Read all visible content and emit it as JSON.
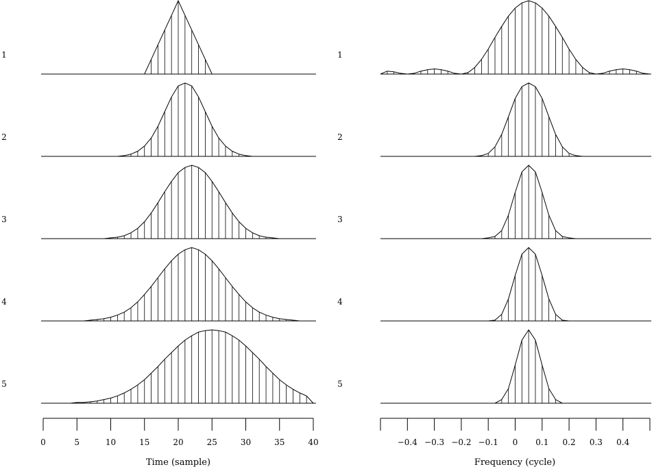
{
  "chart_data": [
    {
      "type": "line",
      "panel": "time",
      "xlabel": "Time (sample)",
      "xlim": [
        0,
        40
      ],
      "x_ticks": [
        "0",
        "5",
        "10",
        "15",
        "20",
        "25",
        "30",
        "35",
        "40"
      ],
      "x_tick_values": [
        0,
        5,
        10,
        15,
        20,
        25,
        30,
        35,
        40
      ],
      "trace_labels": [
        "1",
        "2",
        "3",
        "4",
        5
      ],
      "sample_start": 0,
      "sample_step": 1,
      "series": [
        {
          "name": "1",
          "values": [
            0,
            0,
            0,
            0,
            0,
            0,
            0,
            0,
            0,
            0,
            0,
            0,
            0,
            0,
            0,
            0,
            0.2,
            0.4,
            0.6,
            0.8,
            1.0,
            0.8,
            0.6,
            0.4,
            0.2,
            0,
            0,
            0,
            0,
            0,
            0,
            0,
            0,
            0,
            0,
            0,
            0,
            0,
            0,
            0,
            0
          ]
        },
        {
          "name": "2",
          "values": [
            0,
            0,
            0,
            0,
            0,
            0,
            0,
            0,
            0,
            0,
            0,
            0,
            0.01,
            0.03,
            0.07,
            0.14,
            0.25,
            0.41,
            0.61,
            0.81,
            0.96,
            1.0,
            0.96,
            0.81,
            0.61,
            0.41,
            0.25,
            0.14,
            0.07,
            0.03,
            0.01,
            0,
            0,
            0,
            0,
            0,
            0,
            0,
            0,
            0,
            0
          ]
        },
        {
          "name": "3",
          "values": [
            0,
            0,
            0,
            0,
            0,
            0,
            0,
            0,
            0,
            0,
            0.01,
            0.02,
            0.04,
            0.08,
            0.14,
            0.23,
            0.35,
            0.49,
            0.64,
            0.78,
            0.9,
            0.97,
            1.0,
            0.97,
            0.9,
            0.78,
            0.64,
            0.49,
            0.35,
            0.23,
            0.14,
            0.08,
            0.04,
            0.02,
            0.01,
            0,
            0,
            0,
            0,
            0,
            0
          ]
        },
        {
          "name": "4",
          "values": [
            0,
            0,
            0,
            0,
            0,
            0,
            0,
            0.01,
            0.02,
            0.03,
            0.05,
            0.08,
            0.12,
            0.18,
            0.26,
            0.36,
            0.47,
            0.59,
            0.71,
            0.82,
            0.91,
            0.97,
            1.0,
            0.97,
            0.91,
            0.82,
            0.71,
            0.59,
            0.47,
            0.36,
            0.26,
            0.18,
            0.12,
            0.08,
            0.05,
            0.03,
            0.02,
            0.01,
            0,
            0,
            0
          ]
        },
        {
          "name": "5",
          "values": [
            0,
            0,
            0,
            0,
            0,
            0.01,
            0.01,
            0.02,
            0.03,
            0.05,
            0.07,
            0.1,
            0.14,
            0.19,
            0.25,
            0.32,
            0.41,
            0.5,
            0.6,
            0.69,
            0.78,
            0.86,
            0.92,
            0.97,
            0.99,
            1.0,
            0.99,
            0.97,
            0.92,
            0.86,
            0.78,
            0.69,
            0.6,
            0.5,
            0.41,
            0.32,
            0.25,
            0.19,
            0.14,
            0.1,
            0
          ]
        }
      ]
    },
    {
      "type": "line",
      "panel": "frequency",
      "xlabel": "Frequency (cycle)",
      "xlim": [
        -0.5,
        0.5
      ],
      "x_ticks": [
        "−0.4",
        "−0.3",
        "−0.2",
        "−0.1",
        "0",
        "0.1",
        "0.2",
        "0.3",
        "0.4"
      ],
      "x_tick_values": [
        -0.4,
        -0.3,
        -0.2,
        -0.1,
        0,
        0.1,
        0.2,
        0.3,
        0.4
      ],
      "trace_labels": [
        "1",
        "2",
        "3",
        "4",
        "5"
      ],
      "sample_start": -0.5,
      "sample_step": 0.025,
      "series": [
        {
          "name": "1",
          "values": [
            0,
            0.04,
            0.03,
            0.01,
            0,
            0.01,
            0.04,
            0.06,
            0.07,
            0.06,
            0.04,
            0.01,
            0,
            0.02,
            0.09,
            0.2,
            0.34,
            0.5,
            0.65,
            0.79,
            0.9,
            0.97,
            1.0,
            0.97,
            0.9,
            0.79,
            0.65,
            0.5,
            0.34,
            0.2,
            0.09,
            0.02,
            0,
            0.01,
            0.04,
            0.06,
            0.07,
            0.06,
            0.04,
            0.01,
            0
          ]
        },
        {
          "name": "2",
          "values": [
            0,
            0,
            0,
            0,
            0,
            0,
            0,
            0,
            0,
            0,
            0,
            0,
            0,
            0,
            0,
            0.01,
            0.04,
            0.13,
            0.3,
            0.54,
            0.79,
            0.95,
            1.0,
            0.95,
            0.79,
            0.54,
            0.3,
            0.13,
            0.04,
            0.01,
            0,
            0,
            0,
            0,
            0,
            0,
            0,
            0,
            0,
            0,
            0
          ]
        },
        {
          "name": "3",
          "values": [
            0,
            0,
            0,
            0,
            0,
            0,
            0,
            0,
            0,
            0,
            0,
            0,
            0,
            0,
            0,
            0,
            0.01,
            0.03,
            0.11,
            0.32,
            0.63,
            0.91,
            1.0,
            0.91,
            0.63,
            0.32,
            0.11,
            0.03,
            0.01,
            0,
            0,
            0,
            0,
            0,
            0,
            0,
            0,
            0,
            0,
            0,
            0
          ]
        },
        {
          "name": "4",
          "values": [
            0,
            0,
            0,
            0,
            0,
            0,
            0,
            0,
            0,
            0,
            0,
            0,
            0,
            0,
            0,
            0,
            0,
            0.01,
            0.09,
            0.3,
            0.62,
            0.91,
            1.0,
            0.91,
            0.62,
            0.3,
            0.09,
            0.01,
            0,
            0,
            0,
            0,
            0,
            0,
            0,
            0,
            0,
            0,
            0,
            0,
            0
          ]
        },
        {
          "name": "5",
          "values": [
            0,
            0,
            0,
            0,
            0,
            0,
            0,
            0,
            0,
            0,
            0,
            0,
            0,
            0,
            0,
            0,
            0,
            0,
            0.05,
            0.2,
            0.52,
            0.86,
            1.0,
            0.86,
            0.52,
            0.2,
            0.05,
            0,
            0,
            0,
            0,
            0,
            0,
            0,
            0,
            0,
            0,
            0,
            0,
            0,
            0
          ]
        }
      ]
    }
  ]
}
